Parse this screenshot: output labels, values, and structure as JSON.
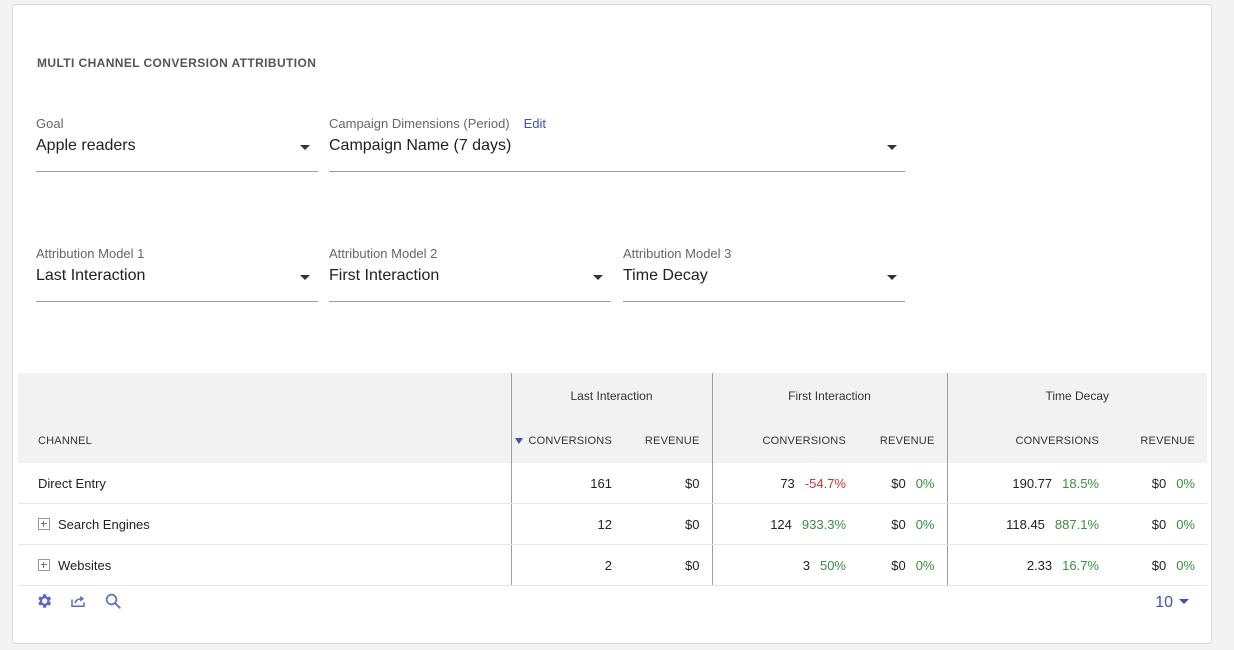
{
  "widget": {
    "title": "MULTI CHANNEL CONVERSION ATTRIBUTION"
  },
  "filters": {
    "goal": {
      "label": "Goal",
      "value": "Apple readers"
    },
    "campaign": {
      "label": "Campaign Dimensions (Period)",
      "edit_label": "Edit",
      "value": "Campaign Name (7 days)"
    },
    "model1": {
      "label": "Attribution Model 1",
      "value": "Last Interaction"
    },
    "model2": {
      "label": "Attribution Model 2",
      "value": "First Interaction"
    },
    "model3": {
      "label": "Attribution Model 3",
      "value": "Time Decay"
    }
  },
  "table": {
    "groups": [
      "Last Interaction",
      "First Interaction",
      "Time Decay"
    ],
    "columns": {
      "channel": "CHANNEL",
      "conversions": "CONVERSIONS",
      "revenue": "REVENUE"
    },
    "rows": [
      {
        "channel": "Direct Entry",
        "expandable": false,
        "m1_conv": "161",
        "m1_rev": "$0",
        "m2_conv": "73",
        "m2_conv_change": "-54.7%",
        "m2_conv_change_color": "red",
        "m2_rev": "$0",
        "m2_rev_change": "0%",
        "m3_conv": "190.77",
        "m3_conv_change": "18.5%",
        "m3_rev": "$0",
        "m3_rev_change": "0%"
      },
      {
        "channel": "Search Engines",
        "expandable": true,
        "m1_conv": "12",
        "m1_rev": "$0",
        "m2_conv": "124",
        "m2_conv_change": "933.3%",
        "m2_conv_change_color": "green",
        "m2_rev": "$0",
        "m2_rev_change": "0%",
        "m3_conv": "118.45",
        "m3_conv_change": "887.1%",
        "m3_rev": "$0",
        "m3_rev_change": "0%"
      },
      {
        "channel": "Websites",
        "expandable": true,
        "m1_conv": "2",
        "m1_rev": "$0",
        "m2_conv": "3",
        "m2_conv_change": "50%",
        "m2_conv_change_color": "green",
        "m2_rev": "$0",
        "m2_rev_change": "0%",
        "m3_conv": "2.33",
        "m3_conv_change": "16.7%",
        "m3_rev": "$0",
        "m3_rev_change": "0%"
      }
    ]
  },
  "footer": {
    "icons": [
      "gear-icon",
      "export-icon",
      "search-icon"
    ],
    "limit": "10"
  },
  "colors": {
    "accent": "#3f51b5",
    "negative": "#d32f2f",
    "positive": "#388e3c",
    "header_bg": "#f2f2f2"
  }
}
